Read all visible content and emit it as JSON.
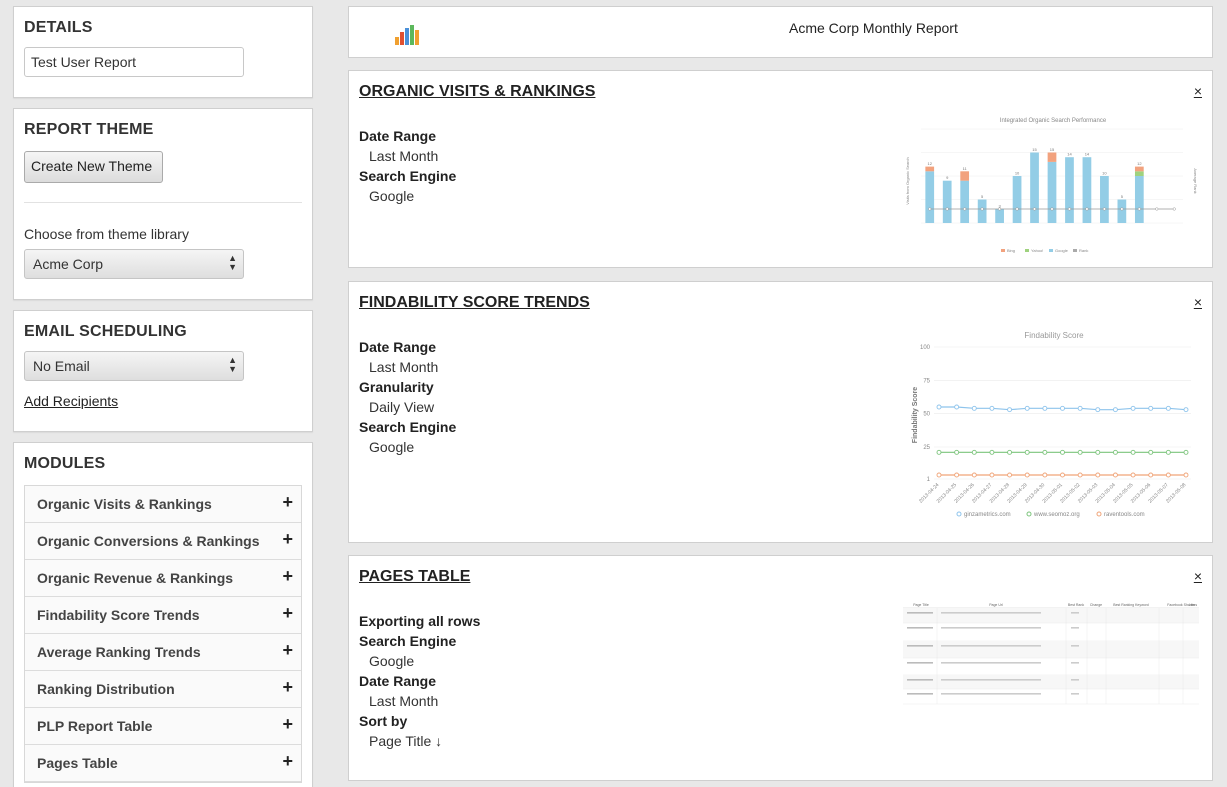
{
  "sidebar": {
    "details": {
      "title": "DETAILS",
      "report_name": "Test User Report"
    },
    "theme": {
      "title": "REPORT THEME",
      "create_button": "Create New Theme",
      "library_label": "Choose from theme library",
      "selected_theme": "Acme Corp"
    },
    "email": {
      "title": "EMAIL SCHEDULING",
      "selected": "No Email",
      "add_recipients": "Add Recipients"
    },
    "modules": {
      "title": "MODULES",
      "items": [
        {
          "label": "Organic Visits & Rankings"
        },
        {
          "label": "Organic Conversions & Rankings"
        },
        {
          "label": "Organic Revenue & Rankings"
        },
        {
          "label": "Findability Score Trends"
        },
        {
          "label": "Average Ranking Trends"
        },
        {
          "label": "Ranking Distribution"
        },
        {
          "label": "PLP Report Table"
        },
        {
          "label": "Pages Table"
        }
      ]
    }
  },
  "header": {
    "title": "Acme Corp Monthly Report",
    "logo_colors": [
      "#f0a030",
      "#e05030",
      "#4a90d9",
      "#5cb85c",
      "#9b59b6"
    ]
  },
  "cards": {
    "organic": {
      "title": "ORGANIC VISITS & RANKINGS",
      "close": "×",
      "params": [
        {
          "label": "Date Range",
          "value": "Last Month"
        },
        {
          "label": "Search Engine",
          "value": "Google"
        }
      ],
      "chart_title": "Integrated Organic Search Performance",
      "y_left_label": "Visits from Organic Search",
      "y_right_label": "Average Rank",
      "legend": [
        "Bing",
        "Yahoo!",
        "Google",
        "Rank"
      ]
    },
    "findability": {
      "title": "FINDABILITY SCORE TRENDS",
      "close": "×",
      "params": [
        {
          "label": "Date Range",
          "value": "Last Month"
        },
        {
          "label": "Granularity",
          "value": "Daily View"
        },
        {
          "label": "Search Engine",
          "value": "Google"
        }
      ],
      "chart_title": "Findability Score",
      "y_label": "Findability Score",
      "legend": [
        "ginzametrics.com",
        "www.seomoz.org",
        "raventools.com"
      ]
    },
    "pages": {
      "title": "PAGES TABLE",
      "close": "×",
      "export_note": "Exporting all rows",
      "params": [
        {
          "label": "Search Engine",
          "value": "Google"
        },
        {
          "label": "Date Range",
          "value": "Last Month"
        },
        {
          "label": "Sort by",
          "value": "Page Title ↓"
        }
      ],
      "table_headers": [
        "Page Title",
        "Page Url",
        "Best Rank",
        "Change",
        "Best Ranking Keyword",
        "Facebook Shares",
        "Likes"
      ]
    }
  },
  "chart_data": [
    {
      "type": "bar",
      "title": "Integrated Organic Search Performance",
      "ylabel": "Visits from Organic Search",
      "y2label": "Average Rank",
      "series": [
        {
          "name": "Google",
          "values": [
            11,
            9,
            9,
            5,
            3,
            10,
            15,
            13,
            14,
            14,
            10,
            5,
            10,
            0,
            0
          ]
        },
        {
          "name": "Yahoo!",
          "values": [
            0,
            0,
            0,
            0,
            0,
            0,
            0,
            0,
            0,
            0,
            0,
            0,
            1,
            0,
            0
          ]
        },
        {
          "name": "Bing",
          "values": [
            1,
            0,
            2,
            0,
            0,
            0,
            0,
            2,
            0,
            0,
            0,
            0,
            1,
            0,
            0
          ]
        }
      ],
      "rank": [
        2,
        2,
        2,
        2,
        2,
        2,
        2,
        2,
        2,
        2,
        2,
        2,
        2,
        2,
        2
      ]
    },
    {
      "type": "line",
      "title": "Findability Score",
      "ylabel": "Findability Score",
      "yticks": [
        "100",
        "75",
        "50",
        "25",
        "1"
      ],
      "x": [
        "2013-04-24",
        "2013-04-25",
        "2013-04-26",
        "2013-04-27",
        "2013-04-28",
        "2013-04-29",
        "2013-04-30",
        "2013-05-01",
        "2013-05-02",
        "2013-05-03",
        "2013-05-04",
        "2013-05-05",
        "2013-05-06",
        "2013-05-07",
        "2013-05-08"
      ],
      "series": [
        {
          "name": "ginzametrics.com",
          "values": [
            55,
            55,
            54,
            54,
            53,
            54,
            54,
            54,
            54,
            53,
            53,
            54,
            54,
            54,
            53
          ]
        },
        {
          "name": "www.seomoz.org",
          "values": [
            21,
            21,
            21,
            21,
            21,
            21,
            21,
            21,
            21,
            21,
            21,
            21,
            21,
            21,
            21
          ]
        },
        {
          "name": "raventools.com",
          "values": [
            4,
            4,
            4,
            4,
            4,
            4,
            4,
            4,
            4,
            4,
            4,
            4,
            4,
            4,
            4
          ]
        }
      ],
      "colors": [
        "#8ec4ec",
        "#7cc47c",
        "#f0a478"
      ]
    }
  ]
}
